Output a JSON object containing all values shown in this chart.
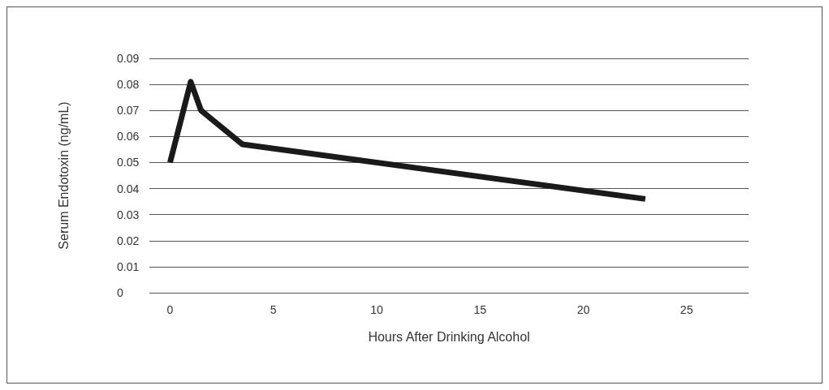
{
  "chart_data": {
    "type": "line",
    "xlabel": "Hours After Drinking Alcohol",
    "ylabel": "Serum Endotoxin (ng/mL)",
    "x": [
      0,
      1,
      1.5,
      3.5,
      23
    ],
    "series": [
      {
        "color": "#1a1a1a",
        "values": [
          0.05,
          0.081,
          0.07,
          0.057,
          0.036
        ]
      }
    ],
    "xlim": [
      -1,
      28
    ],
    "xticks": [
      0,
      5,
      10,
      15,
      20,
      25
    ],
    "ylim": [
      0,
      0.09
    ],
    "yticks": [
      0,
      0.01,
      0.02,
      0.03,
      0.04,
      0.05,
      0.06,
      0.07,
      0.08,
      0.09
    ],
    "grid": "y",
    "marker": "none",
    "line_style": "solid"
  }
}
